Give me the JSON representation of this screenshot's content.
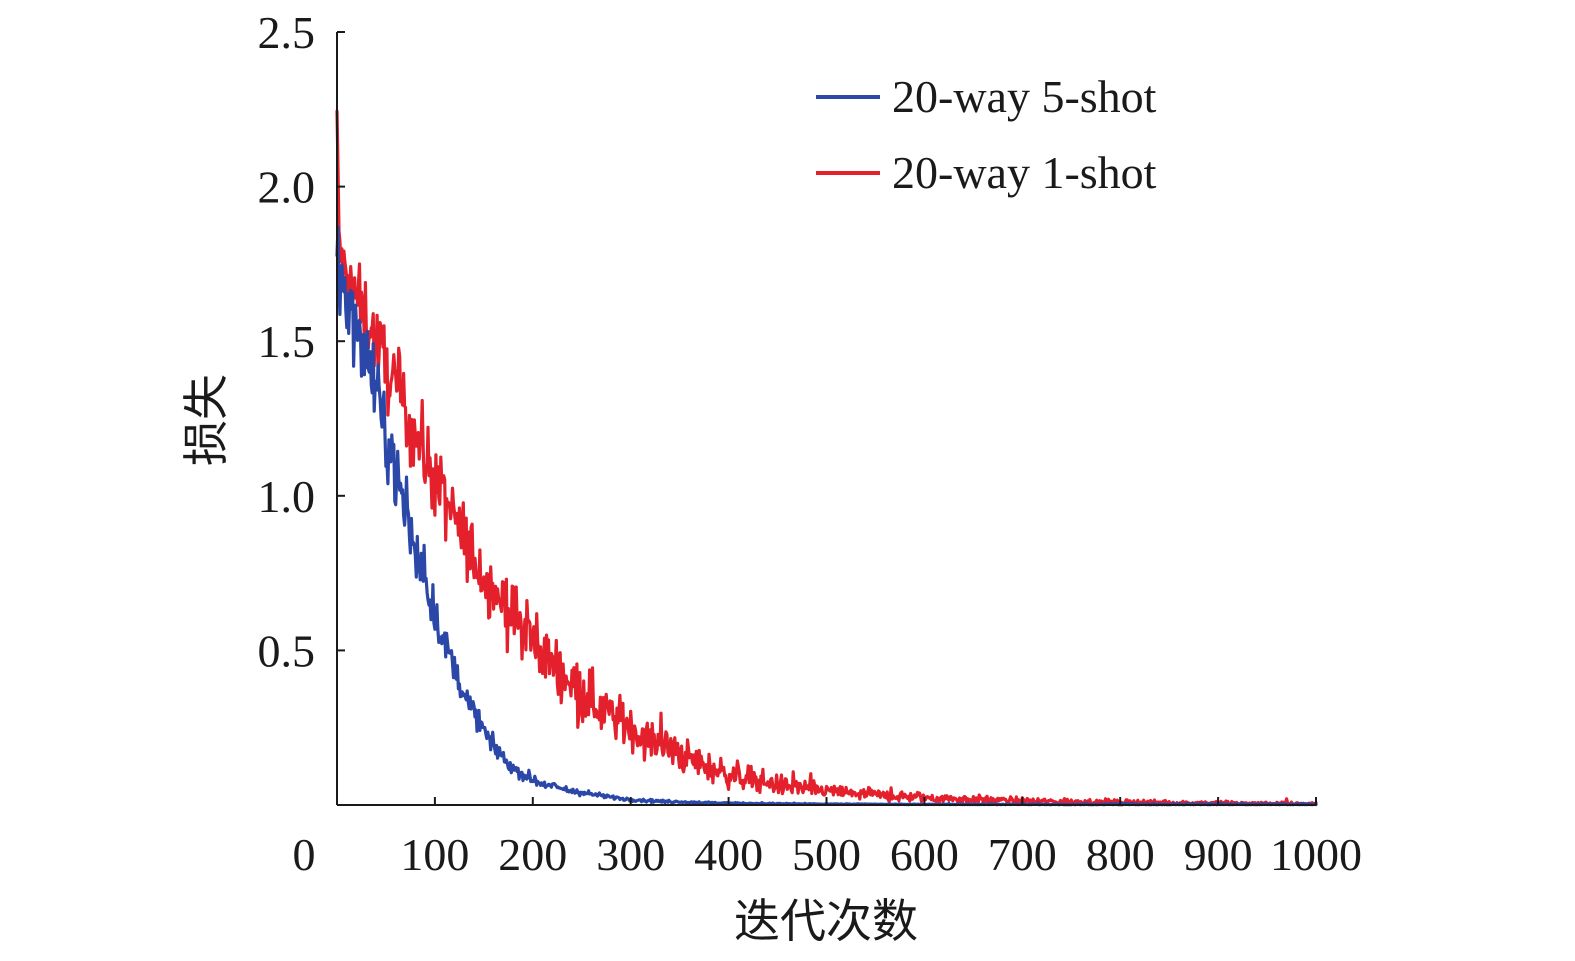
{
  "chart_data": {
    "type": "line",
    "xlabel": "迭代次数",
    "ylabel": "损失",
    "xlim": [
      0,
      1000
    ],
    "ylim": [
      0,
      2.5
    ],
    "x_ticks": [
      "0",
      "100",
      "200",
      "300",
      "400",
      "500",
      "600",
      "700",
      "800",
      "900",
      "1000"
    ],
    "y_ticks": [
      "0.5",
      "1.0",
      "1.5",
      "2.0",
      "2.5"
    ],
    "grid": false,
    "legend_position": "top-right",
    "series": [
      {
        "name": "20-way 5-shot",
        "color": "#2b47a8",
        "x": [
          0,
          5,
          10,
          20,
          30,
          40,
          50,
          60,
          70,
          80,
          90,
          100,
          110,
          120,
          130,
          140,
          150,
          160,
          170,
          180,
          190,
          200,
          220,
          240,
          260,
          280,
          300,
          330,
          360,
          400,
          450,
          500,
          600,
          700,
          800,
          900,
          1000
        ],
        "values": [
          1.8,
          1.68,
          1.62,
          1.55,
          1.45,
          1.33,
          1.2,
          1.08,
          0.95,
          0.82,
          0.72,
          0.62,
          0.52,
          0.44,
          0.36,
          0.3,
          0.24,
          0.19,
          0.15,
          0.12,
          0.1,
          0.08,
          0.06,
          0.045,
          0.035,
          0.025,
          0.018,
          0.012,
          0.009,
          0.006,
          0.004,
          0.003,
          0.002,
          0.002,
          0.001,
          0.001,
          0.001
        ],
        "noise": [
          0.1,
          0.11,
          0.11,
          0.11,
          0.11,
          0.11,
          0.1,
          0.1,
          0.09,
          0.08,
          0.07,
          0.06,
          0.05,
          0.045,
          0.04,
          0.035,
          0.03,
          0.025,
          0.022,
          0.02,
          0.018,
          0.015,
          0.012,
          0.01,
          0.008,
          0.006,
          0.005,
          0.004,
          0.003,
          0.002,
          0.002,
          0.001,
          0.001,
          0.001,
          0.001,
          0.001,
          0.001
        ]
      },
      {
        "name": "20-way 1-shot",
        "color": "#e3202b",
        "x": [
          0,
          2,
          5,
          10,
          20,
          30,
          40,
          50,
          60,
          70,
          80,
          90,
          100,
          120,
          140,
          160,
          180,
          200,
          220,
          240,
          260,
          280,
          300,
          320,
          340,
          360,
          380,
          400,
          450,
          500,
          550,
          600,
          650,
          700,
          800,
          900,
          1000
        ],
        "values": [
          2.2,
          1.85,
          1.75,
          1.7,
          1.64,
          1.58,
          1.5,
          1.42,
          1.35,
          1.27,
          1.2,
          1.13,
          1.05,
          0.92,
          0.8,
          0.7,
          0.61,
          0.53,
          0.46,
          0.4,
          0.34,
          0.29,
          0.25,
          0.21,
          0.18,
          0.15,
          0.12,
          0.1,
          0.065,
          0.045,
          0.032,
          0.024,
          0.018,
          0.013,
          0.008,
          0.006,
          0.004
        ],
        "noise": [
          0.08,
          0.08,
          0.09,
          0.1,
          0.1,
          0.11,
          0.11,
          0.12,
          0.12,
          0.12,
          0.12,
          0.12,
          0.11,
          0.11,
          0.1,
          0.1,
          0.1,
          0.09,
          0.09,
          0.085,
          0.08,
          0.075,
          0.07,
          0.06,
          0.055,
          0.05,
          0.045,
          0.04,
          0.03,
          0.022,
          0.018,
          0.015,
          0.012,
          0.01,
          0.008,
          0.006,
          0.005
        ]
      }
    ]
  }
}
